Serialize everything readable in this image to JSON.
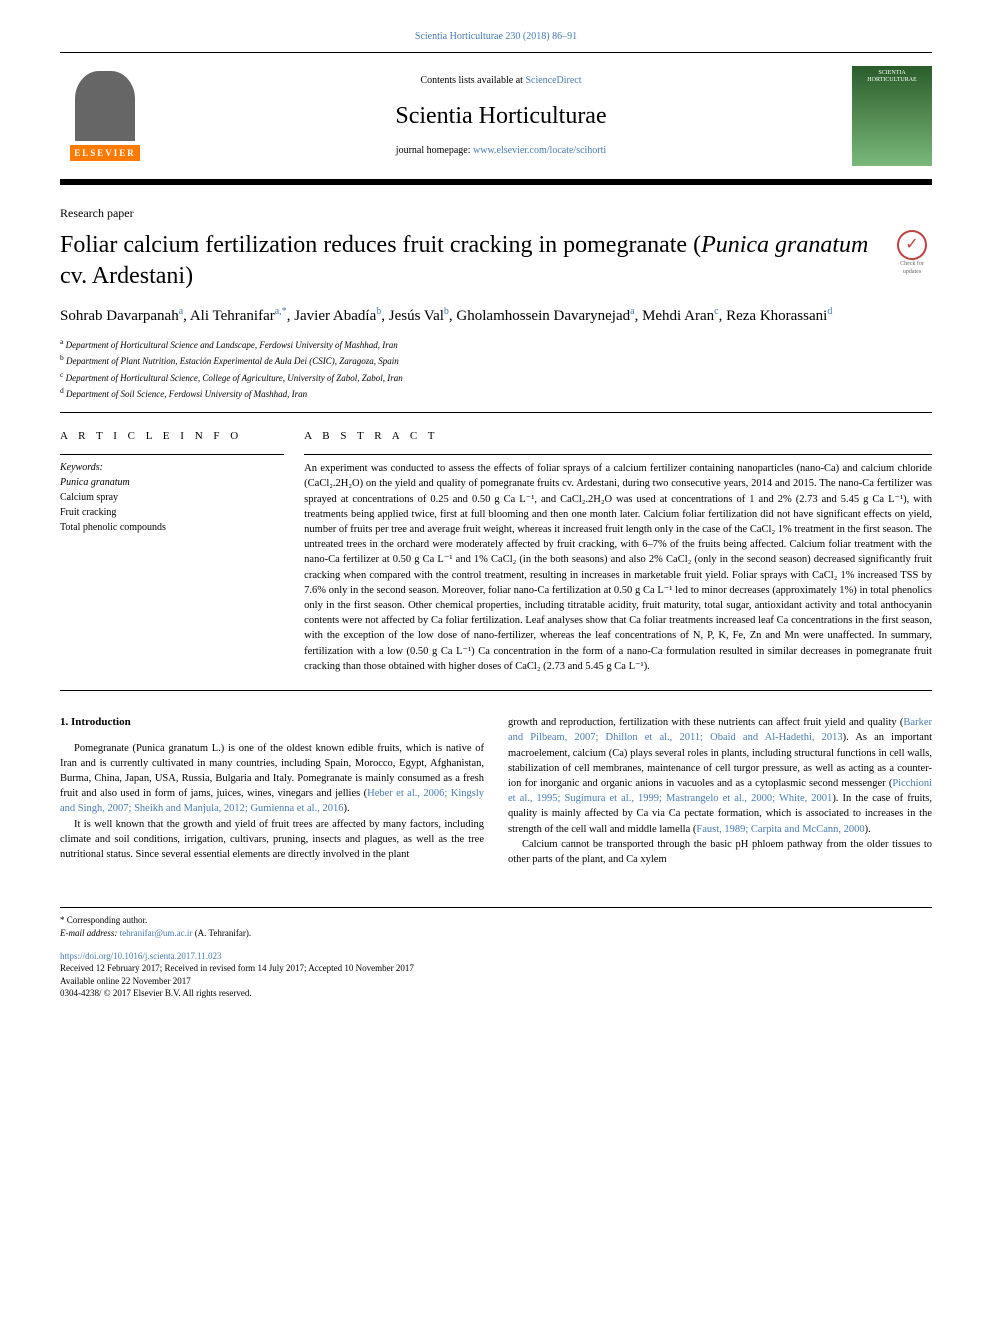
{
  "journal_ref": "Scientia Horticulturae 230 (2018) 86–91",
  "header": {
    "contents_prefix": "Contents lists available at ",
    "contents_link": "ScienceDirect",
    "journal_name": "Scientia Horticulturae",
    "homepage_prefix": "journal homepage: ",
    "homepage_link": "www.elsevier.com/locate/scihorti",
    "publisher_label": "ELSEVIER",
    "cover_label": "SCIENTIA HORTICULTURAE"
  },
  "paper_type": "Research paper",
  "title_main": "Foliar calcium fertilization reduces fruit cracking in pomegranate (",
  "title_species": "Punica granatum",
  "title_tail": " cv. Ardestani)",
  "check_label": "Check for updates",
  "authors_html": "Sohrab Davarpanah<sup>a</sup>, Ali Tehranifar<sup>a,*</sup>, Javier Abadía<sup>b</sup>, Jesús Val<sup>b</sup>, Gholamhossein Davarynejad<sup>a</sup>, Mehdi Aran<sup>c</sup>, Reza Khorassani<sup>d</sup>",
  "affiliations": [
    "a Department of Horticultural Science and Landscape, Ferdowsi University of Mashhad, Iran",
    "b Department of Plant Nutrition, Estación Experimental de Aula Dei (CSIC), Zaragoza, Spain",
    "c Department of Horticultural Science, College of Agriculture, University of Zabol, Zabol, Iran",
    "d Department of Soil Science, Ferdowsi University of Mashhad, Iran"
  ],
  "article_info_heading": "A R T I C L E  I N F O",
  "keywords_label": "Keywords:",
  "keywords": [
    "Punica granatum",
    "Calcium spray",
    "Fruit cracking",
    "Total phenolic compounds"
  ],
  "abstract_heading": "A B S T R A C T",
  "abstract_text": "An experiment was conducted to assess the effects of foliar sprays of a calcium fertilizer containing nanoparticles (nano-Ca) and calcium chloride (CaCl₂.2H₂O) on the yield and quality of pomegranate fruits cv. Ardestani, during two consecutive years, 2014 and 2015. The nano-Ca fertilizer was sprayed at concentrations of 0.25 and 0.50 g Ca L⁻¹, and CaCl₂.2H₂O was used at concentrations of 1 and 2% (2.73 and 5.45 g Ca L⁻¹), with treatments being applied twice, first at full blooming and then one month later. Calcium foliar fertilization did not have significant effects on yield, number of fruits per tree and average fruit weight, whereas it increased fruit length only in the case of the CaCl₂ 1% treatment in the first season. The untreated trees in the orchard were moderately affected by fruit cracking, with 6–7% of the fruits being affected. Calcium foliar treatment with the nano-Ca fertilizer at 0.50 g Ca L⁻¹ and 1% CaCl₂ (in the both seasons) and also 2% CaCl₂ (only in the second season) decreased significantly fruit cracking when compared with the control treatment, resulting in increases in marketable fruit yield. Foliar sprays with CaCl₂ 1% increased TSS by 7.6% only in the second season. Moreover, foliar nano-Ca fertilization at 0.50 g Ca L⁻¹ led to minor decreases (approximately 1%) in total phenolics only in the first season. Other chemical properties, including titratable acidity, fruit maturity, total sugar, antioxidant activity and total anthocyanin contents were not affected by Ca foliar fertilization. Leaf analyses show that Ca foliar treatments increased leaf Ca concentrations in the first season, with the exception of the low dose of nano-fertilizer, whereas the leaf concentrations of N, P, K, Fe, Zn and Mn were unaffected. In summary, fertilization with a low (0.50 g Ca L⁻¹) Ca concentration in the form of a nano-Ca formulation resulted in similar decreases in pomegranate fruit cracking than those obtained with higher doses of CaCl₂ (2.73 and 5.45 g Ca L⁻¹).",
  "intro_heading": "1. Introduction",
  "intro_paras_left": [
    "Pomegranate (Punica granatum L.) is one of the oldest known edible fruits, which is native of Iran and is currently cultivated in many countries, including Spain, Morocco, Egypt, Afghanistan, Burma, China, Japan, USA, Russia, Bulgaria and Italy. Pomegranate is mainly consumed as a fresh fruit and also used in form of jams, juices, wines, vinegars and jellies (Heber et al., 2006; Kingsly and Singh, 2007; Sheikh and Manjula, 2012; Gumienna et al., 2016).",
    "It is well known that the growth and yield of fruit trees are affected by many factors, including climate and soil conditions, irrigation, cultivars, pruning, insects and plagues, as well as the tree nutritional status. Since several essential elements are directly involved in the plant"
  ],
  "intro_paras_right": [
    "growth and reproduction, fertilization with these nutrients can affect fruit yield and quality (Barker and Pilbeam, 2007; Dhillon et al., 2011; Obaid and Al-Hadethi, 2013). As an important macroelement, calcium (Ca) plays several roles in plants, including structural functions in cell walls, stabilization of cell membranes, maintenance of cell turgor pressure, as well as acting as a counter-ion for inorganic and organic anions in vacuoles and as a cytoplasmic second messenger (Picchioni et al., 1995; Sugimura et al., 1999; Mastrangelo et al., 2000; White, 2001). In the case of fruits, quality is mainly affected by Ca via Ca pectate formation, which is associated to increases in the strength of the cell wall and middle lamella (Faust, 1989; Carpita and McCann, 2000).",
    "Calcium cannot be transported through the basic pH phloem pathway from the older tissues to other parts of the plant, and Ca xylem"
  ],
  "footer": {
    "corr_label": "* Corresponding author.",
    "email_label": "E-mail address: ",
    "email_link": "tehranifar@um.ac.ir",
    "email_suffix": " (A. Tehranifar).",
    "doi_link": "https://doi.org/10.1016/j.scienta.2017.11.023",
    "received": "Received 12 February 2017; Received in revised form 14 July 2017; Accepted 10 November 2017",
    "available": "Available online 22 November 2017",
    "copyright": "0304-4238/ © 2017 Elsevier B.V. All rights reserved."
  },
  "colors": {
    "link": "#4a7cb0",
    "elsevier_orange": "#ff7a00",
    "check_red": "#c04040"
  }
}
